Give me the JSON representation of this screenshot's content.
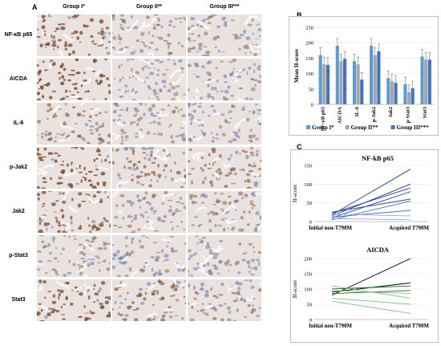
{
  "panel_a": {
    "letter": "A",
    "columns": [
      "Group I*",
      "Group II**",
      "Group III***"
    ],
    "rows": [
      "NF-κB p65",
      "AICDA",
      "IL-6",
      "p-Jak2",
      "Jak2",
      "p-Stat3",
      "Stat3"
    ],
    "intensity": [
      [
        0.85,
        0.45,
        0.35
      ],
      [
        0.95,
        0.2,
        0.4
      ],
      [
        0.55,
        0.3,
        0.2
      ],
      [
        0.9,
        0.6,
        0.55
      ],
      [
        0.8,
        0.35,
        0.4
      ],
      [
        0.35,
        0.3,
        0.25
      ],
      [
        0.85,
        0.65,
        0.5
      ]
    ]
  },
  "panel_b": {
    "letter": "B",
    "chart_data": {
      "type": "bar",
      "ylabel": "Mean H-score",
      "ylim": [
        0,
        250
      ],
      "yticks": [
        "0",
        "50",
        "100",
        "150",
        "200",
        "250"
      ],
      "categories": [
        "NF-κB p65",
        "AICDA",
        "IL-6",
        "p-Jak2",
        "Jak2",
        "p-Stat3",
        "Stat3"
      ],
      "series": [
        {
          "name": "Group I*",
          "color": "#5b9bd5",
          "values": [
            160,
            190,
            140,
            190,
            85,
            65,
            155
          ]
        },
        {
          "name": "Group II**",
          "color": "#a5a5a5",
          "values": [
            130,
            140,
            130,
            160,
            75,
            40,
            145
          ]
        },
        {
          "name": "Group III***",
          "color": "#4472c4",
          "values": [
            128,
            148,
            80,
            172,
            70,
            52,
            145
          ]
        }
      ]
    }
  },
  "panel_c": {
    "letter": "C",
    "chart_data": [
      {
        "type": "line",
        "title": "NF-kB p65",
        "ylabel": "H-score",
        "ylim": [
          0,
          150
        ],
        "yticks": [
          "0",
          "50",
          "100",
          "150"
        ],
        "categories": [
          "Initial non-T790M",
          "Acquired T790M"
        ],
        "series": [
          {
            "color": "#1f3f8f",
            "values": [
              18,
              140
            ]
          },
          {
            "color": "#1f3f8f",
            "values": [
              15,
              100
            ]
          },
          {
            "color": "#1f3f8f",
            "values": [
              22,
              90
            ]
          },
          {
            "color": "#1f3f8f",
            "values": [
              10,
              80
            ]
          },
          {
            "color": "#1f3f8f",
            "values": [
              25,
              60
            ]
          },
          {
            "color": "#4a6fc4",
            "values": [
              5,
              55
            ]
          },
          {
            "color": "#4a6fc4",
            "values": [
              12,
              30
            ]
          },
          {
            "color": "#8aa6e0",
            "values": [
              20,
              15
            ]
          },
          {
            "color": "#8aa6e0",
            "values": [
              8,
              5
            ]
          }
        ]
      },
      {
        "type": "line",
        "title": "AICDA",
        "ylabel": "H-score",
        "ylim": [
          0,
          200
        ],
        "yticks": [
          "0",
          "50",
          "100",
          "150",
          "200"
        ],
        "categories": [
          "Initial non-T790M",
          "Acquired T790M"
        ],
        "series": [
          {
            "color": "#000000",
            "values": [
              80,
              200
            ]
          },
          {
            "color": "#000000",
            "values": [
              90,
              120
            ]
          },
          {
            "color": "#1e6b1e",
            "values": [
              100,
              110
            ]
          },
          {
            "color": "#1e6b1e",
            "values": [
              85,
              95
            ]
          },
          {
            "color": "#7fbf7f",
            "values": [
              95,
              85
            ]
          },
          {
            "color": "#7fbf7f",
            "values": [
              110,
              70
            ]
          },
          {
            "color": "#7fbf7f",
            "values": [
              70,
              50
            ]
          },
          {
            "color": "#7fbf7f",
            "values": [
              60,
              20
            ]
          }
        ]
      }
    ]
  }
}
